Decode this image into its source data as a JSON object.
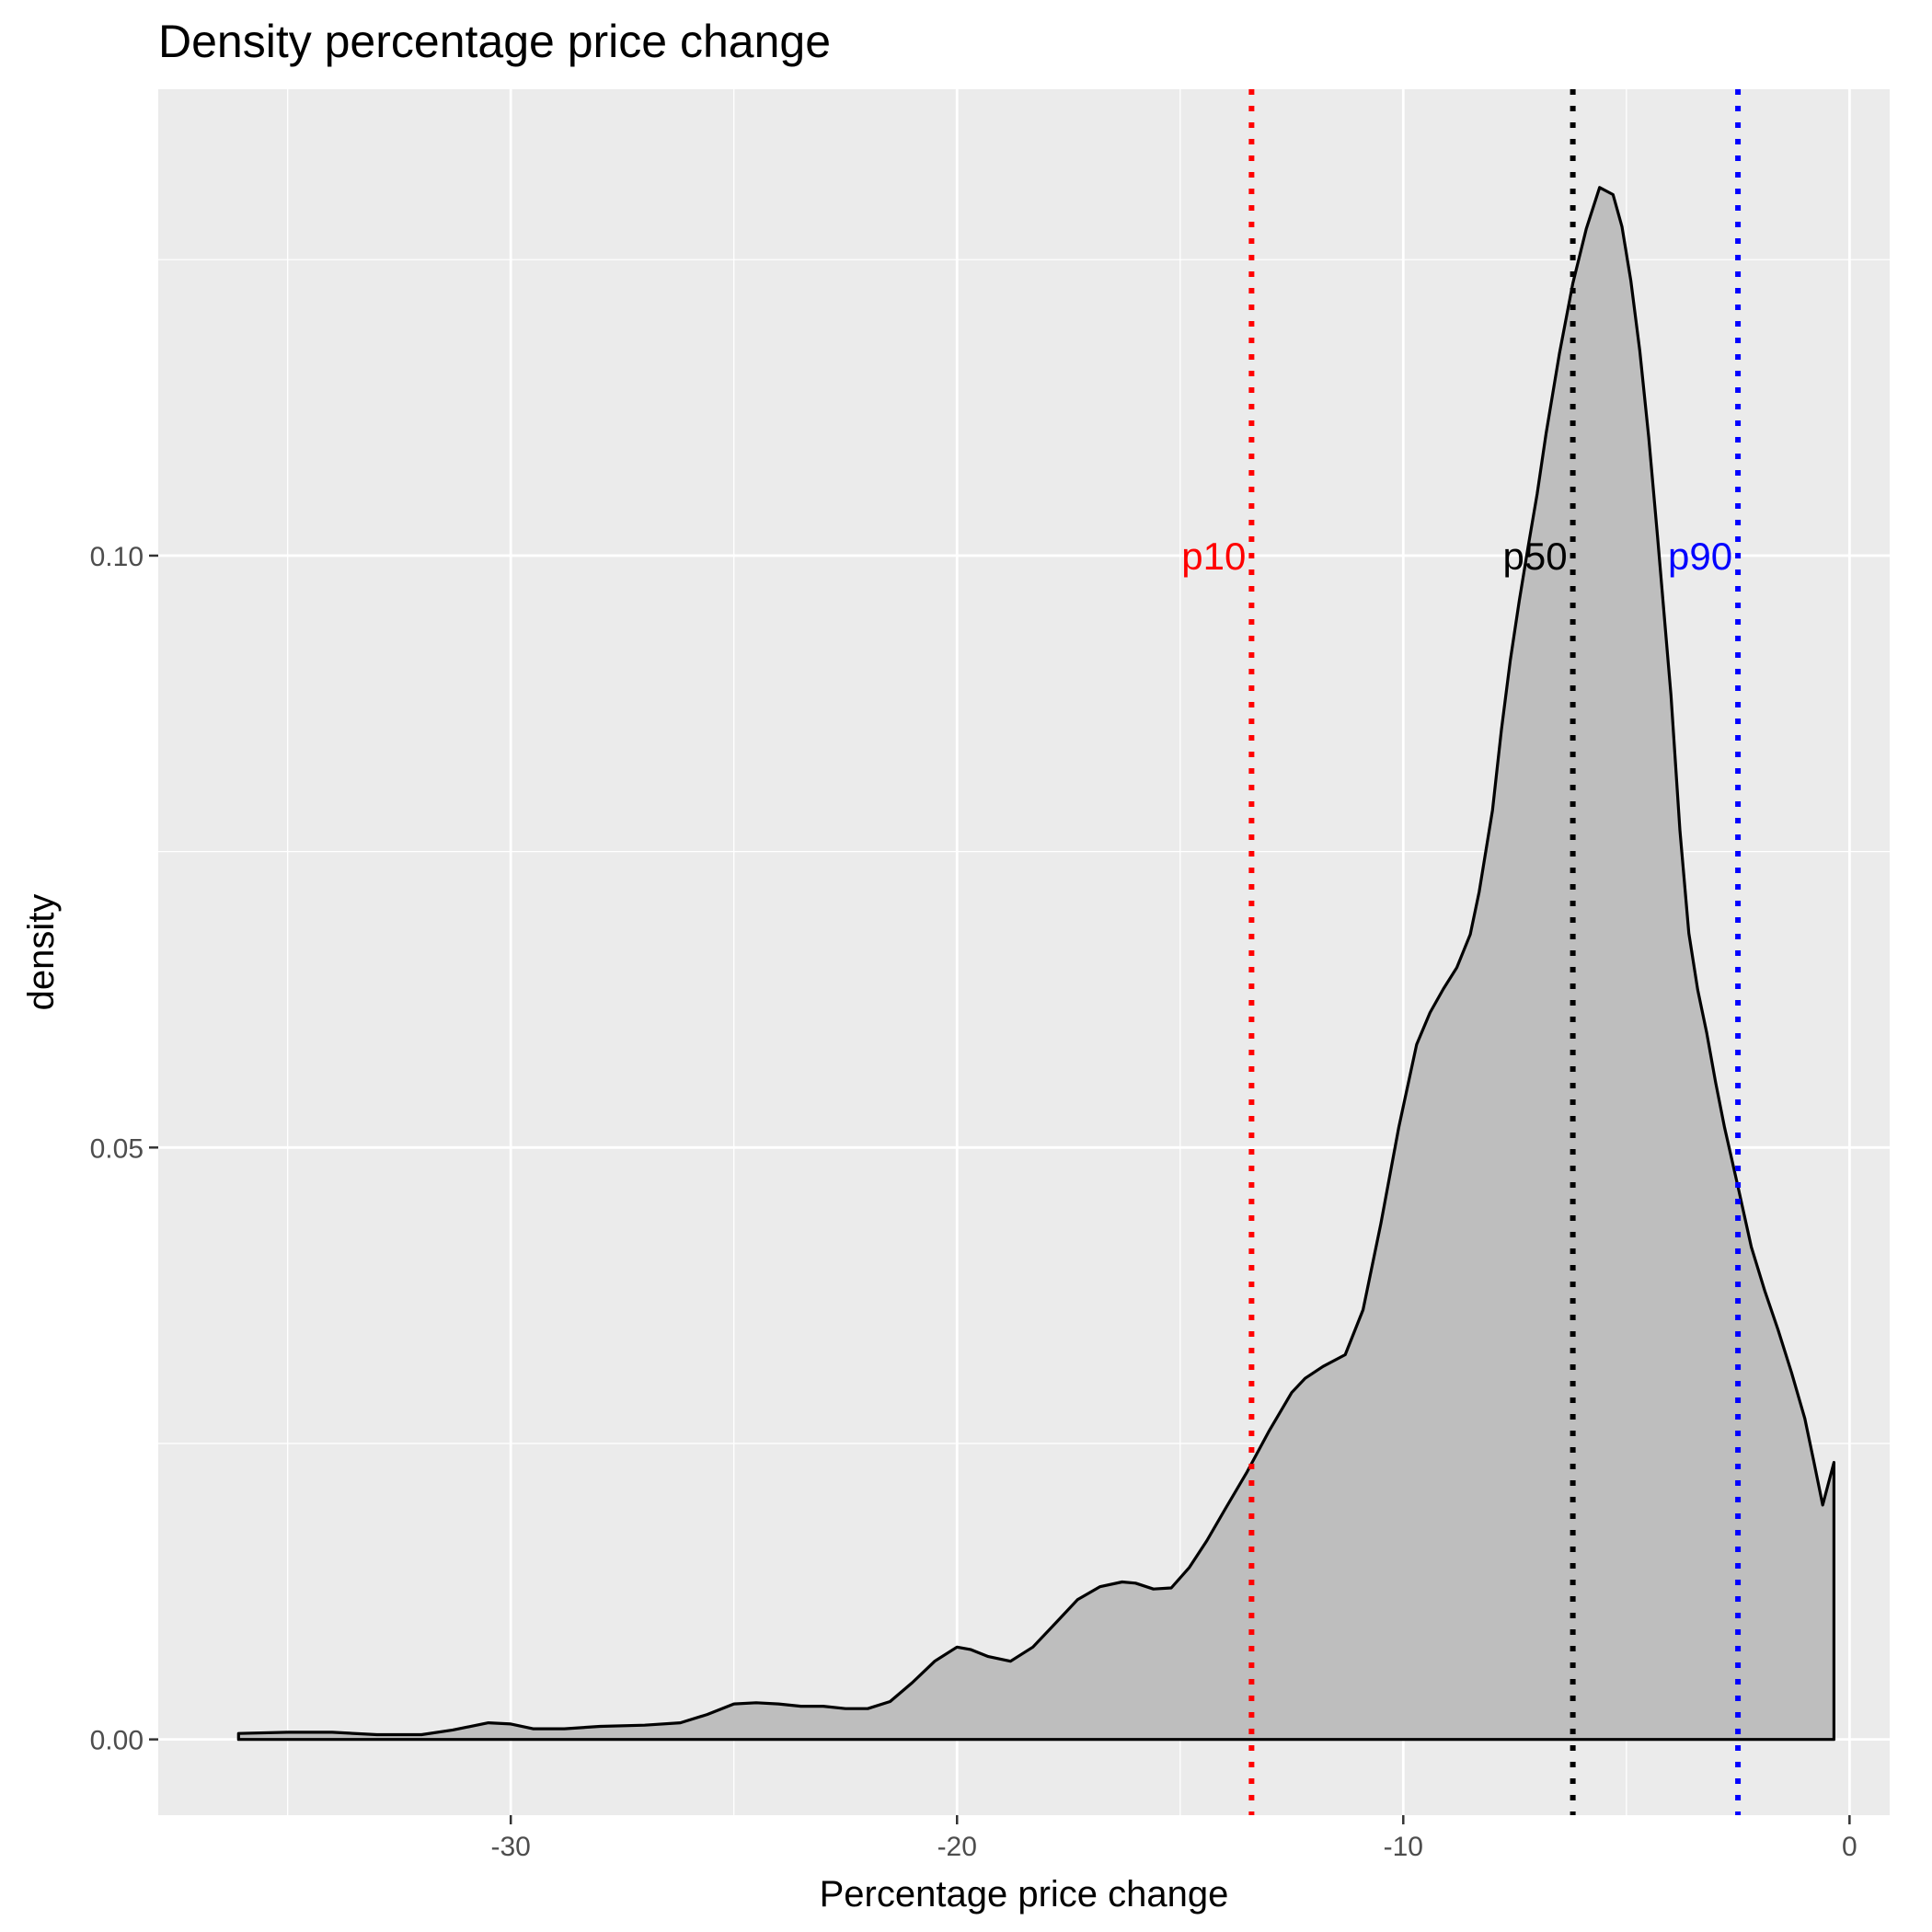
{
  "chart_data": {
    "type": "area",
    "title": "Density percentage price change",
    "xlabel": "Percentage price change",
    "ylabel": "density",
    "xlim": [
      -37.9,
      0.9
    ],
    "ylim": [
      -0.0064,
      0.1394
    ],
    "x_ticks": [
      -30,
      -20,
      -10,
      0
    ],
    "x_tick_labels": [
      "-30",
      "-20",
      "-10",
      "0"
    ],
    "y_ticks": [
      0.0,
      0.05,
      0.1
    ],
    "y_tick_labels": [
      "0.00",
      "0.05",
      "0.10"
    ],
    "grid": true,
    "background": "#ebebeb",
    "fill_color": "#bebebe",
    "line_color": "#000000",
    "series": [
      {
        "x": [
          -36.1,
          -35.0,
          -34.0,
          -33.0,
          -32.0,
          -31.3,
          -30.5,
          -30.0,
          -29.5,
          -28.8,
          -28.0,
          -27.0,
          -26.2,
          -25.6,
          -25.0,
          -24.5,
          -24.0,
          -23.5,
          -23.0,
          -22.5,
          -22.0,
          -21.5,
          -21.0,
          -20.5,
          -20.0,
          -19.7,
          -19.3,
          -18.8,
          -18.3,
          -17.8,
          -17.3,
          -16.8,
          -16.3,
          -16.0,
          -15.6,
          -15.2,
          -14.8,
          -14.4,
          -14.0,
          -13.5,
          -13.0,
          -12.5,
          -12.2,
          -11.8,
          -11.3,
          -10.9,
          -10.5,
          -10.1,
          -9.7,
          -9.4,
          -9.1,
          -8.8,
          -8.5,
          -8.3,
          -8.0,
          -7.8,
          -7.6,
          -7.4,
          -7.2,
          -7.0,
          -6.8,
          -6.5,
          -6.2,
          -5.9,
          -5.6,
          -5.3,
          -5.1,
          -4.9,
          -4.7,
          -4.5,
          -4.3,
          -4.0,
          -3.8,
          -3.6,
          -3.4,
          -3.2,
          -3.0,
          -2.8,
          -2.5,
          -2.2,
          -1.9,
          -1.6,
          -1.3,
          -1.0,
          -0.8,
          -0.6,
          -0.35
        ],
        "y": [
          0.0005,
          0.0006,
          0.0006,
          0.0004,
          0.0004,
          0.0008,
          0.0014,
          0.0013,
          0.0009,
          0.0009,
          0.0011,
          0.0012,
          0.0014,
          0.0021,
          0.003,
          0.0031,
          0.003,
          0.0028,
          0.0028,
          0.0026,
          0.0026,
          0.0032,
          0.0048,
          0.0066,
          0.0078,
          0.0076,
          0.007,
          0.0066,
          0.0078,
          0.0098,
          0.0118,
          0.0129,
          0.0133,
          0.0132,
          0.0127,
          0.0128,
          0.0145,
          0.0168,
          0.0194,
          0.0226,
          0.0261,
          0.0293,
          0.0305,
          0.0315,
          0.0325,
          0.0363,
          0.0436,
          0.0517,
          0.0587,
          0.0614,
          0.0634,
          0.0652,
          0.068,
          0.0716,
          0.0785,
          0.0853,
          0.0912,
          0.0962,
          0.1008,
          0.1052,
          0.1103,
          0.1171,
          0.123,
          0.1276,
          0.1311,
          0.1305,
          0.1278,
          0.1232,
          0.1173,
          0.11,
          0.1015,
          0.0882,
          0.0768,
          0.0681,
          0.0633,
          0.0597,
          0.0555,
          0.0517,
          0.0467,
          0.0416,
          0.0379,
          0.0346,
          0.031,
          0.0271,
          0.0235,
          0.0198,
          0.0234
        ]
      }
    ],
    "vlines": [
      {
        "x": -13.4,
        "color": "#ff0000",
        "label": "p10",
        "label_y": 0.1
      },
      {
        "x": -6.2,
        "color": "#000000",
        "label": "p50",
        "label_y": 0.1
      },
      {
        "x": -2.5,
        "color": "#0000ff",
        "label": "p90",
        "label_y": 0.1
      }
    ]
  }
}
